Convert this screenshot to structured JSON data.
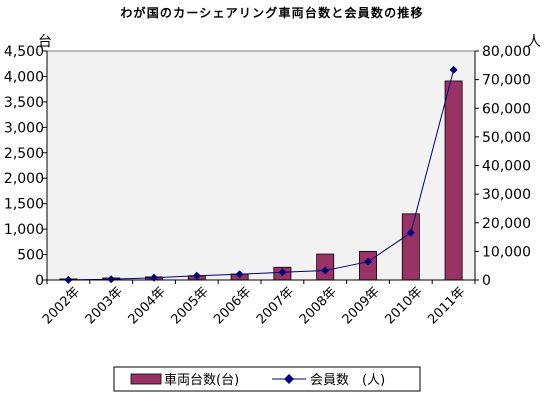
{
  "chart_data": {
    "type": "bar",
    "title": "わが国のカーシェアリング車両台数と会員数の推移",
    "categories": [
      "2002年",
      "2003年",
      "2004年",
      "2005年",
      "2006年",
      "2007年",
      "2008年",
      "2009年",
      "2010年",
      "2011年"
    ],
    "series": [
      {
        "name": "車両台数(台)",
        "type": "bar",
        "axis": "left",
        "color": "#993366",
        "values": [
          21,
          40,
          60,
          85,
          118,
          250,
          510,
          563,
          1300,
          3911
        ]
      },
      {
        "name": "会員数　(人)",
        "type": "line",
        "axis": "right",
        "color": "#000080",
        "values": [
          50,
          250,
          800,
          1500,
          2000,
          2700,
          3300,
          6400,
          16500,
          73400
        ]
      }
    ],
    "y_left": {
      "unit": "台",
      "min": 0,
      "max": 4500,
      "ticks": [
        "0",
        "500",
        "1,000",
        "1,500",
        "2,000",
        "2,500",
        "3,000",
        "3,500",
        "4,000",
        "4,500"
      ]
    },
    "y_right": {
      "unit": "人",
      "min": 0,
      "max": 80000,
      "ticks": [
        "0",
        "10,000",
        "20,000",
        "30,000",
        "40,000",
        "50,000",
        "60,000",
        "70,000",
        "80,000"
      ]
    },
    "grid": false,
    "plot_background": "#f2f2f2",
    "legend_position": "bottom"
  }
}
